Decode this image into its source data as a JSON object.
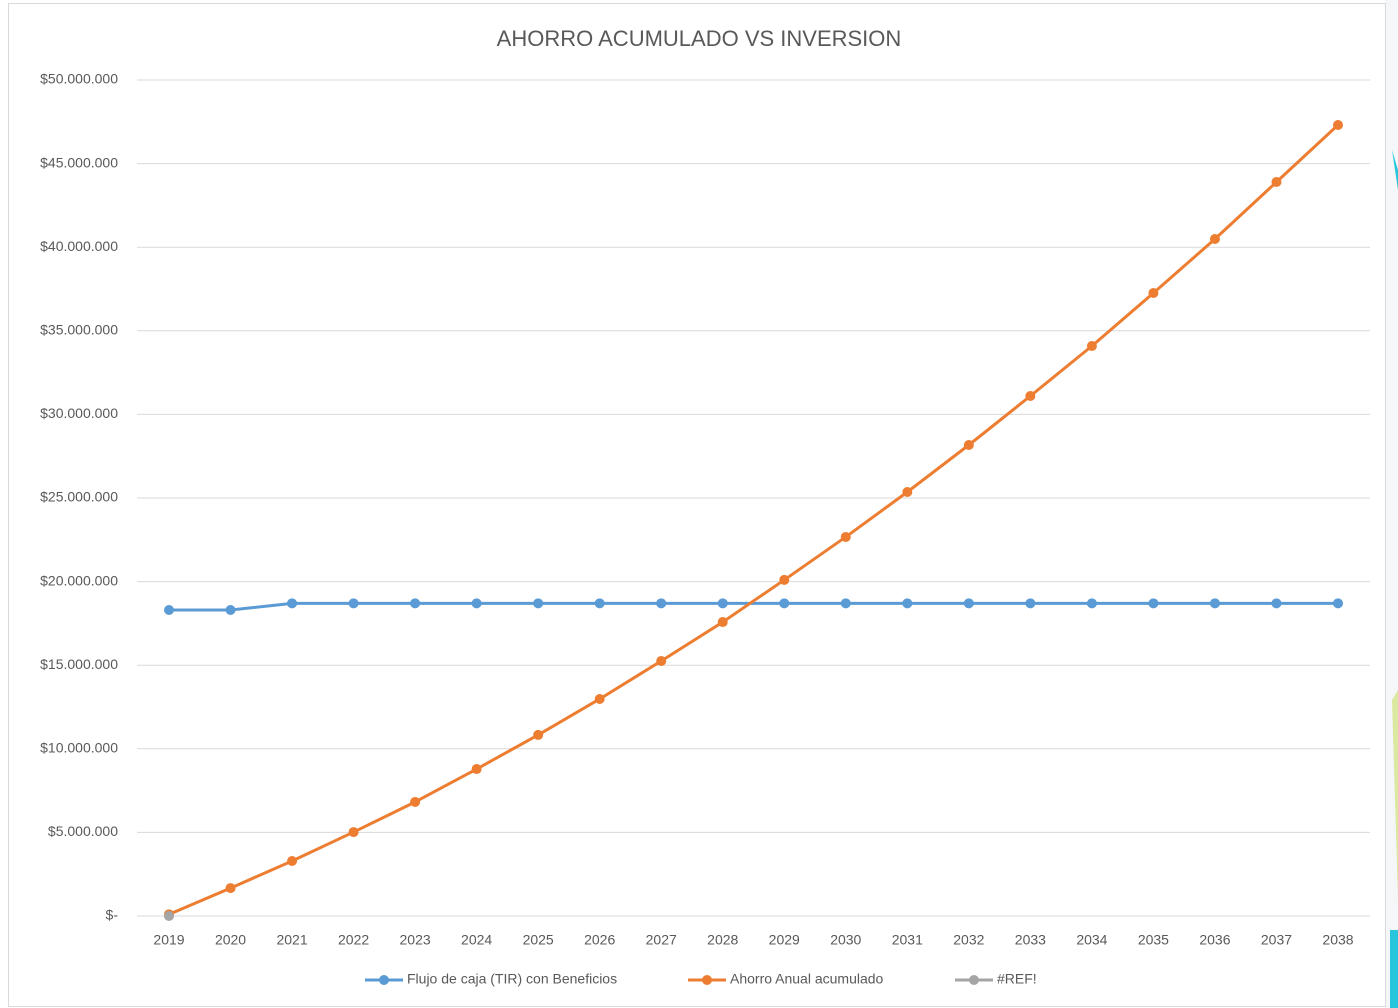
{
  "chart_data": {
    "type": "line",
    "title": "AHORRO ACUMULADO VS INVERSION",
    "categories": [
      "2019",
      "2020",
      "2021",
      "2022",
      "2023",
      "2024",
      "2025",
      "2026",
      "2027",
      "2028",
      "2029",
      "2030",
      "2031",
      "2032",
      "2033",
      "2034",
      "2035",
      "2036",
      "2037",
      "2038"
    ],
    "series": [
      {
        "name": "Flujo de caja (TIR) con Beneficios",
        "color": "#5b9bd5",
        "values": [
          18300000,
          18300000,
          18700000,
          18700000,
          18700000,
          18700000,
          18700000,
          18700000,
          18700000,
          18700000,
          18700000,
          18700000,
          18700000,
          18700000,
          18700000,
          18700000,
          18700000,
          18700000,
          18700000,
          18700000
        ]
      },
      {
        "name": "Ahorro Anual acumulado",
        "color": "#ed7d31",
        "values": [
          100000,
          1670000,
          3290000,
          5020000,
          6820000,
          8790000,
          10830000,
          12980000,
          15250000,
          17580000,
          20100000,
          22670000,
          25360000,
          28170000,
          31100000,
          34090000,
          37260000,
          40490000,
          43900000,
          47310000
        ]
      },
      {
        "name": "#REF!",
        "color": "#a5a5a5",
        "values": [
          0,
          null,
          null,
          null,
          null,
          null,
          null,
          null,
          null,
          null,
          null,
          null,
          null,
          null,
          null,
          null,
          null,
          null,
          null,
          null
        ]
      }
    ],
    "ylim": [
      0,
      50000000
    ],
    "yticks": [
      {
        "value": 0,
        "label": "$-"
      },
      {
        "value": 5000000,
        "label": "$5.000.000"
      },
      {
        "value": 10000000,
        "label": "$10.000.000"
      },
      {
        "value": 15000000,
        "label": "$15.000.000"
      },
      {
        "value": 20000000,
        "label": "$20.000.000"
      },
      {
        "value": 25000000,
        "label": "$25.000.000"
      },
      {
        "value": 30000000,
        "label": "$30.000.000"
      },
      {
        "value": 35000000,
        "label": "$35.000.000"
      },
      {
        "value": 40000000,
        "label": "$40.000.000"
      },
      {
        "value": 45000000,
        "label": "$45.000.000"
      },
      {
        "value": 50000000,
        "label": "$50.000.000"
      }
    ],
    "grid": true,
    "legend": "bottom"
  }
}
